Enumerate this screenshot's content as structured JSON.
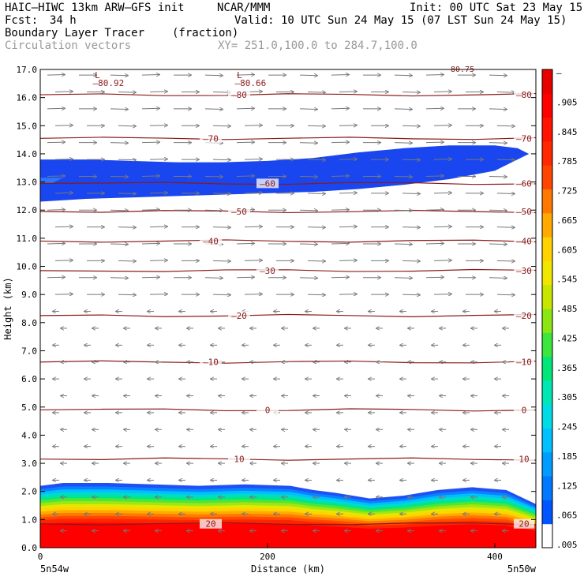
{
  "header": {
    "model": "HAIC–HIWC 13km ARW–GFS init",
    "org": "NCAR/MMM",
    "init": "Init: 00 UTC Sat 23 May 15",
    "fcst_label": "Fcst:",
    "fcst_value": "34 h",
    "valid": "Valid: 10 UTC Sun 24 May 15 (07 LST Sun 24 May 15)",
    "field": "Boundary Layer Tracer",
    "units": "(fraction)",
    "vectors": "Circulation vectors",
    "xy": "XY= 251.0,100.0 to 284.7,100.0"
  },
  "chart_data": {
    "type": "heatmap",
    "title": "Boundary Layer Tracer",
    "units": "(fraction)",
    "xlabel": "Distance (km)",
    "ylabel": "Height (km)",
    "xlim": [
      0,
      440
    ],
    "ylim": [
      0,
      17
    ],
    "x_ticks": [
      0,
      200,
      400
    ],
    "y_ticks": [
      "0.0",
      "1.0",
      "2.0",
      "3.0",
      "4.0",
      "5.0",
      "6.0",
      "7.0",
      "8.0",
      "9.0",
      "10.0",
      "11.0",
      "12.0",
      "13.0",
      "14.0",
      "15.0",
      "16.0",
      "17.0"
    ],
    "x_endpoint_labels": {
      "left": "5n54w",
      "right": "5n50w"
    },
    "colorbar": {
      "labels": [
        ".005",
        ".065",
        ".125",
        ".185",
        ".245",
        ".305",
        ".365",
        ".425",
        ".485",
        ".545",
        ".605",
        ".665",
        ".725",
        ".785",
        ".845",
        ".905",
        "–"
      ],
      "colors": [
        "#ffffff",
        "#0055ff",
        "#0078ff",
        "#009cff",
        "#00c0ff",
        "#00dce6",
        "#00e6b4",
        "#00e678",
        "#3ce63c",
        "#8ce614",
        "#c8e600",
        "#f0e600",
        "#ffd200",
        "#ffaa00",
        "#ff7800",
        "#ff4600",
        "#ff2800",
        "#ff1400",
        "#ff0000",
        "#e60000"
      ]
    },
    "tracer_upper_layer": {
      "x": [
        0,
        40,
        80,
        120,
        160,
        200,
        240,
        280,
        320,
        360,
        400,
        420
      ],
      "bottom_km": [
        12.3,
        12.4,
        12.45,
        12.5,
        12.55,
        12.6,
        12.65,
        12.75,
        12.9,
        13.1,
        13.4,
        13.8
      ],
      "top_km": [
        13.8,
        13.8,
        13.75,
        13.7,
        13.7,
        13.75,
        13.85,
        14.05,
        14.2,
        14.3,
        14.3,
        14.2
      ]
    },
    "tracer_boundary_layer": {
      "x": [
        0,
        20,
        60,
        100,
        140,
        180,
        220,
        240,
        260,
        290,
        320,
        350,
        380,
        410,
        440
      ],
      "top_km": [
        2.2,
        2.3,
        2.3,
        2.25,
        2.2,
        2.25,
        2.2,
        2.05,
        1.95,
        1.75,
        1.85,
        2.05,
        2.15,
        2.05,
        1.55
      ]
    },
    "temperature_contours": [
      {
        "label": "20",
        "y_km": 0.85
      },
      {
        "label": "10",
        "y_km": 3.15
      },
      {
        "label": "0",
        "y_km": 4.9
      },
      {
        "label": "–10",
        "y_km": 6.6
      },
      {
        "label": "–20",
        "y_km": 8.25
      },
      {
        "label": "–30",
        "y_km": 9.85
      },
      {
        "label": "–40",
        "y_km": 10.9
      },
      {
        "label": "–50",
        "y_km": 11.95
      },
      {
        "label": "–60",
        "y_km": 12.95
      },
      {
        "label": "–70",
        "y_km": 14.55
      },
      {
        "label": "–80",
        "y_km": 16.1
      }
    ],
    "minimum_labels": [
      {
        "marker": "L",
        "value": "–80.92",
        "x": 60
      },
      {
        "marker": "L",
        "value": "–80.66",
        "x": 185
      }
    ],
    "top_label": "80.75",
    "wind_rows": [
      {
        "y_km": 16.8,
        "dir": 1
      },
      {
        "y_km": 16.2,
        "dir": 1
      },
      {
        "y_km": 15.6,
        "dir": 1
      },
      {
        "y_km": 15.0,
        "dir": 1
      },
      {
        "y_km": 14.4,
        "dir": 1
      },
      {
        "y_km": 13.8,
        "dir": 1
      },
      {
        "y_km": 13.2,
        "dir": 1
      },
      {
        "y_km": 12.6,
        "dir": 1
      },
      {
        "y_km": 12.0,
        "dir": 1
      },
      {
        "y_km": 11.4,
        "dir": 1
      },
      {
        "y_km": 10.8,
        "dir": 1
      },
      {
        "y_km": 10.2,
        "dir": 1
      },
      {
        "y_km": 9.6,
        "dir": 1
      },
      {
        "y_km": 9.0,
        "dir": 1
      },
      {
        "y_km": 8.4,
        "dir": -1
      },
      {
        "y_km": 7.8,
        "dir": -1
      },
      {
        "y_km": 7.2,
        "dir": -1
      },
      {
        "y_km": 6.6,
        "dir": -1
      },
      {
        "y_km": 6.0,
        "dir": -1
      },
      {
        "y_km": 5.4,
        "dir": -1
      },
      {
        "y_km": 4.8,
        "dir": -1
      },
      {
        "y_km": 4.2,
        "dir": -1
      },
      {
        "y_km": 3.6,
        "dir": -1
      },
      {
        "y_km": 3.0,
        "dir": -1
      },
      {
        "y_km": 2.4,
        "dir": -1
      },
      {
        "y_km": 1.8,
        "dir": -1
      },
      {
        "y_km": 1.2,
        "dir": -1
      },
      {
        "y_km": 0.6,
        "dir": -1
      }
    ]
  }
}
